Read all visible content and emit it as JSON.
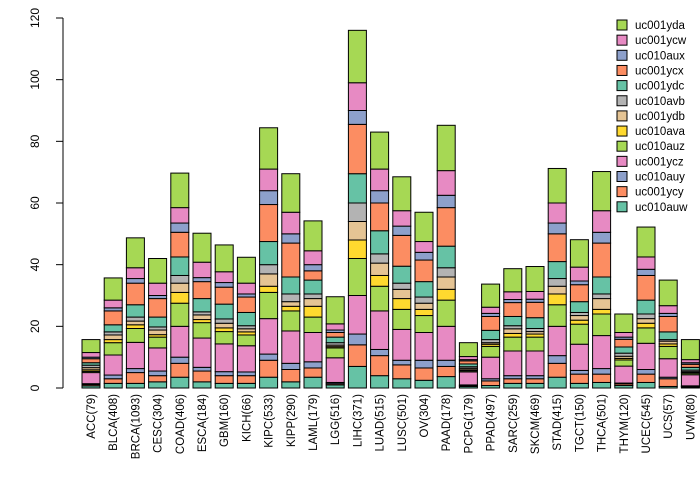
{
  "chart_data": {
    "type": "bar",
    "stacked": true,
    "title": "",
    "xlabel": "",
    "ylabel": "",
    "ylim": [
      0,
      120
    ],
    "yticks": [
      0,
      20,
      40,
      60,
      80,
      100,
      120
    ],
    "legend_position": "top-right",
    "categories": [
      "ACC(79)",
      "BLCA(408)",
      "BRCA(1093)",
      "CESC(304)",
      "COAD(406)",
      "ESCA(184)",
      "GBM(160)",
      "KICH(66)",
      "KIPC(533)",
      "KIPP(290)",
      "LAML(179)",
      "LGG(516)",
      "LIHC(371)",
      "LUAD(515)",
      "LUSC(501)",
      "OV(304)",
      "PAAD(178)",
      "PCPG(179)",
      "PPAD(497)",
      "SARC(259)",
      "SKCM(469)",
      "STAD(415)",
      "TGCT(150)",
      "THCA(501)",
      "THYM(120)",
      "UCEC(545)",
      "UCS(57)",
      "UVM(80)"
    ],
    "series": [
      {
        "name": "uc010auw",
        "color": "#66c2a5",
        "values": [
          0.7,
          1.5,
          1.5,
          2,
          3.5,
          2,
          1.5,
          1.5,
          3.5,
          2,
          3.5,
          1,
          7,
          4,
          3,
          2.5,
          3.7,
          0.5,
          0.8,
          1.5,
          1.5,
          3.5,
          1.5,
          1.8,
          0.8,
          1.8,
          0.5,
          0.3
        ]
      },
      {
        "name": "uc001ycy",
        "color": "#fc8d62",
        "values": [
          0.4,
          1.5,
          3.5,
          2,
          4.5,
          3.5,
          2.5,
          2.5,
          5.5,
          4,
          3,
          0.4,
          7,
          6.5,
          4.5,
          4,
          3.3,
          0.3,
          1.5,
          1.5,
          1.5,
          4.5,
          3,
          2.7,
          0.5,
          2.7,
          2.5,
          0.2
        ]
      },
      {
        "name": "uc010auy",
        "color": "#8da0cb",
        "values": [
          0.3,
          1.2,
          1.3,
          1.5,
          2,
          1.2,
          1.3,
          1.2,
          2,
          2,
          2,
          0.4,
          3.5,
          2,
          1.5,
          2.5,
          2,
          0.2,
          0.7,
          1,
          1,
          2.5,
          1.2,
          1.8,
          0.3,
          1.5,
          0.5,
          0.2
        ]
      },
      {
        "name": "uc001ycz",
        "color": "#e78ac3",
        "values": [
          3.6,
          6.5,
          8.5,
          7.5,
          10,
          9.5,
          9,
          8.5,
          11.5,
          10.5,
          9.5,
          8,
          12.5,
          12.5,
          10,
          9,
          11,
          4.2,
          7,
          8,
          8,
          9.5,
          8.5,
          10.7,
          5.5,
          8.5,
          6,
          3.6
        ]
      },
      {
        "name": "uc010auz",
        "color": "#a6d854",
        "values": [
          0.4,
          4,
          4.5,
          3.5,
          7.5,
          5,
          4,
          3.5,
          8.5,
          6.5,
          5,
          3.2,
          12,
          8,
          6.5,
          5.5,
          8.5,
          0.4,
          3.5,
          4.5,
          4.5,
          7,
          6.5,
          7,
          2,
          5,
          4,
          0.5
        ]
      },
      {
        "name": "uc010ava",
        "color": "#ffd92f",
        "values": [
          0.5,
          1,
          1.2,
          0.8,
          3.5,
          1,
          1.2,
          1,
          2,
          1.5,
          3.5,
          0.4,
          6,
          3.5,
          3.5,
          2,
          3.5,
          0.3,
          0.7,
          1.2,
          1,
          3.5,
          1.3,
          1.5,
          0.5,
          1.5,
          0.8,
          0.2
        ]
      },
      {
        "name": "uc001ydb",
        "color": "#e5c494",
        "values": [
          0.7,
          1.5,
          1.2,
          1.5,
          3,
          1.5,
          1.5,
          1,
          4,
          1.5,
          2.5,
          0.5,
          6,
          4,
          3,
          2,
          4,
          0.5,
          0.5,
          1.5,
          0.8,
          2.5,
          1.5,
          3.5,
          0.7,
          1.5,
          0.9,
          0.3
        ]
      },
      {
        "name": "uc010avb",
        "color": "#b3b3b3",
        "values": [
          0.8,
          1,
          1.3,
          1,
          2.5,
          1,
          1.4,
          1,
          3,
          2.5,
          1.5,
          0.8,
          6,
          3,
          2,
          2,
          3,
          0.5,
          1,
          1,
          1,
          2.5,
          1,
          1.5,
          1,
          1.5,
          0.5,
          0.5
        ]
      },
      {
        "name": "uc001ydc",
        "color": "#66c2a5",
        "values": [
          0.8,
          2.3,
          4,
          3.2,
          6,
          4.3,
          4.8,
          4.3,
          7.5,
          5.5,
          4.5,
          1.8,
          9.5,
          7.5,
          5.5,
          5,
          7,
          0.9,
          3,
          3,
          3.5,
          5.5,
          3.5,
          5.5,
          2,
          4.5,
          2.5,
          0.9
        ]
      },
      {
        "name": "uc001ycx",
        "color": "#fc8d62",
        "values": [
          1.3,
          4.5,
          7,
          6,
          8,
          5.5,
          5.5,
          5,
          12,
          11,
          3,
          1.5,
          16,
          9,
          10,
          7,
          12.5,
          1,
          4.5,
          4.5,
          5,
          9,
          5.5,
          11,
          2.5,
          8,
          5,
          1
        ]
      },
      {
        "name": "uc010aux",
        "color": "#8da0cb",
        "values": [
          0.5,
          1,
          1.5,
          1,
          3,
          1.3,
          1.5,
          1,
          4.5,
          3,
          2,
          0.8,
          4.5,
          4,
          3,
          2.5,
          4,
          0.4,
          1,
          1,
          1,
          3.5,
          1.2,
          3.5,
          0.7,
          2,
          1,
          0.5
        ]
      },
      {
        "name": "uc001ycw",
        "color": "#e78ac3",
        "values": [
          1.5,
          2.5,
          3.5,
          4,
          5,
          5,
          3.5,
          3.5,
          7,
          7,
          4.5,
          2,
          9,
          7,
          5,
          3.5,
          8,
          1,
          2,
          2.5,
          2.5,
          6.5,
          4.5,
          7,
          1.5,
          4,
          2.5,
          1
        ]
      },
      {
        "name": "uc001yda",
        "color": "#a6d854",
        "values": [
          4.2,
          7.2,
          9.7,
          8,
          11.2,
          9.4,
          8.7,
          8.4,
          13.4,
          12.5,
          9.7,
          8.8,
          17,
          12,
          11,
          9.5,
          14.7,
          4.5,
          7.5,
          7.5,
          8.1,
          11.2,
          8.9,
          12.7,
          6,
          9.7,
          8.3,
          6.5
        ]
      }
    ]
  }
}
